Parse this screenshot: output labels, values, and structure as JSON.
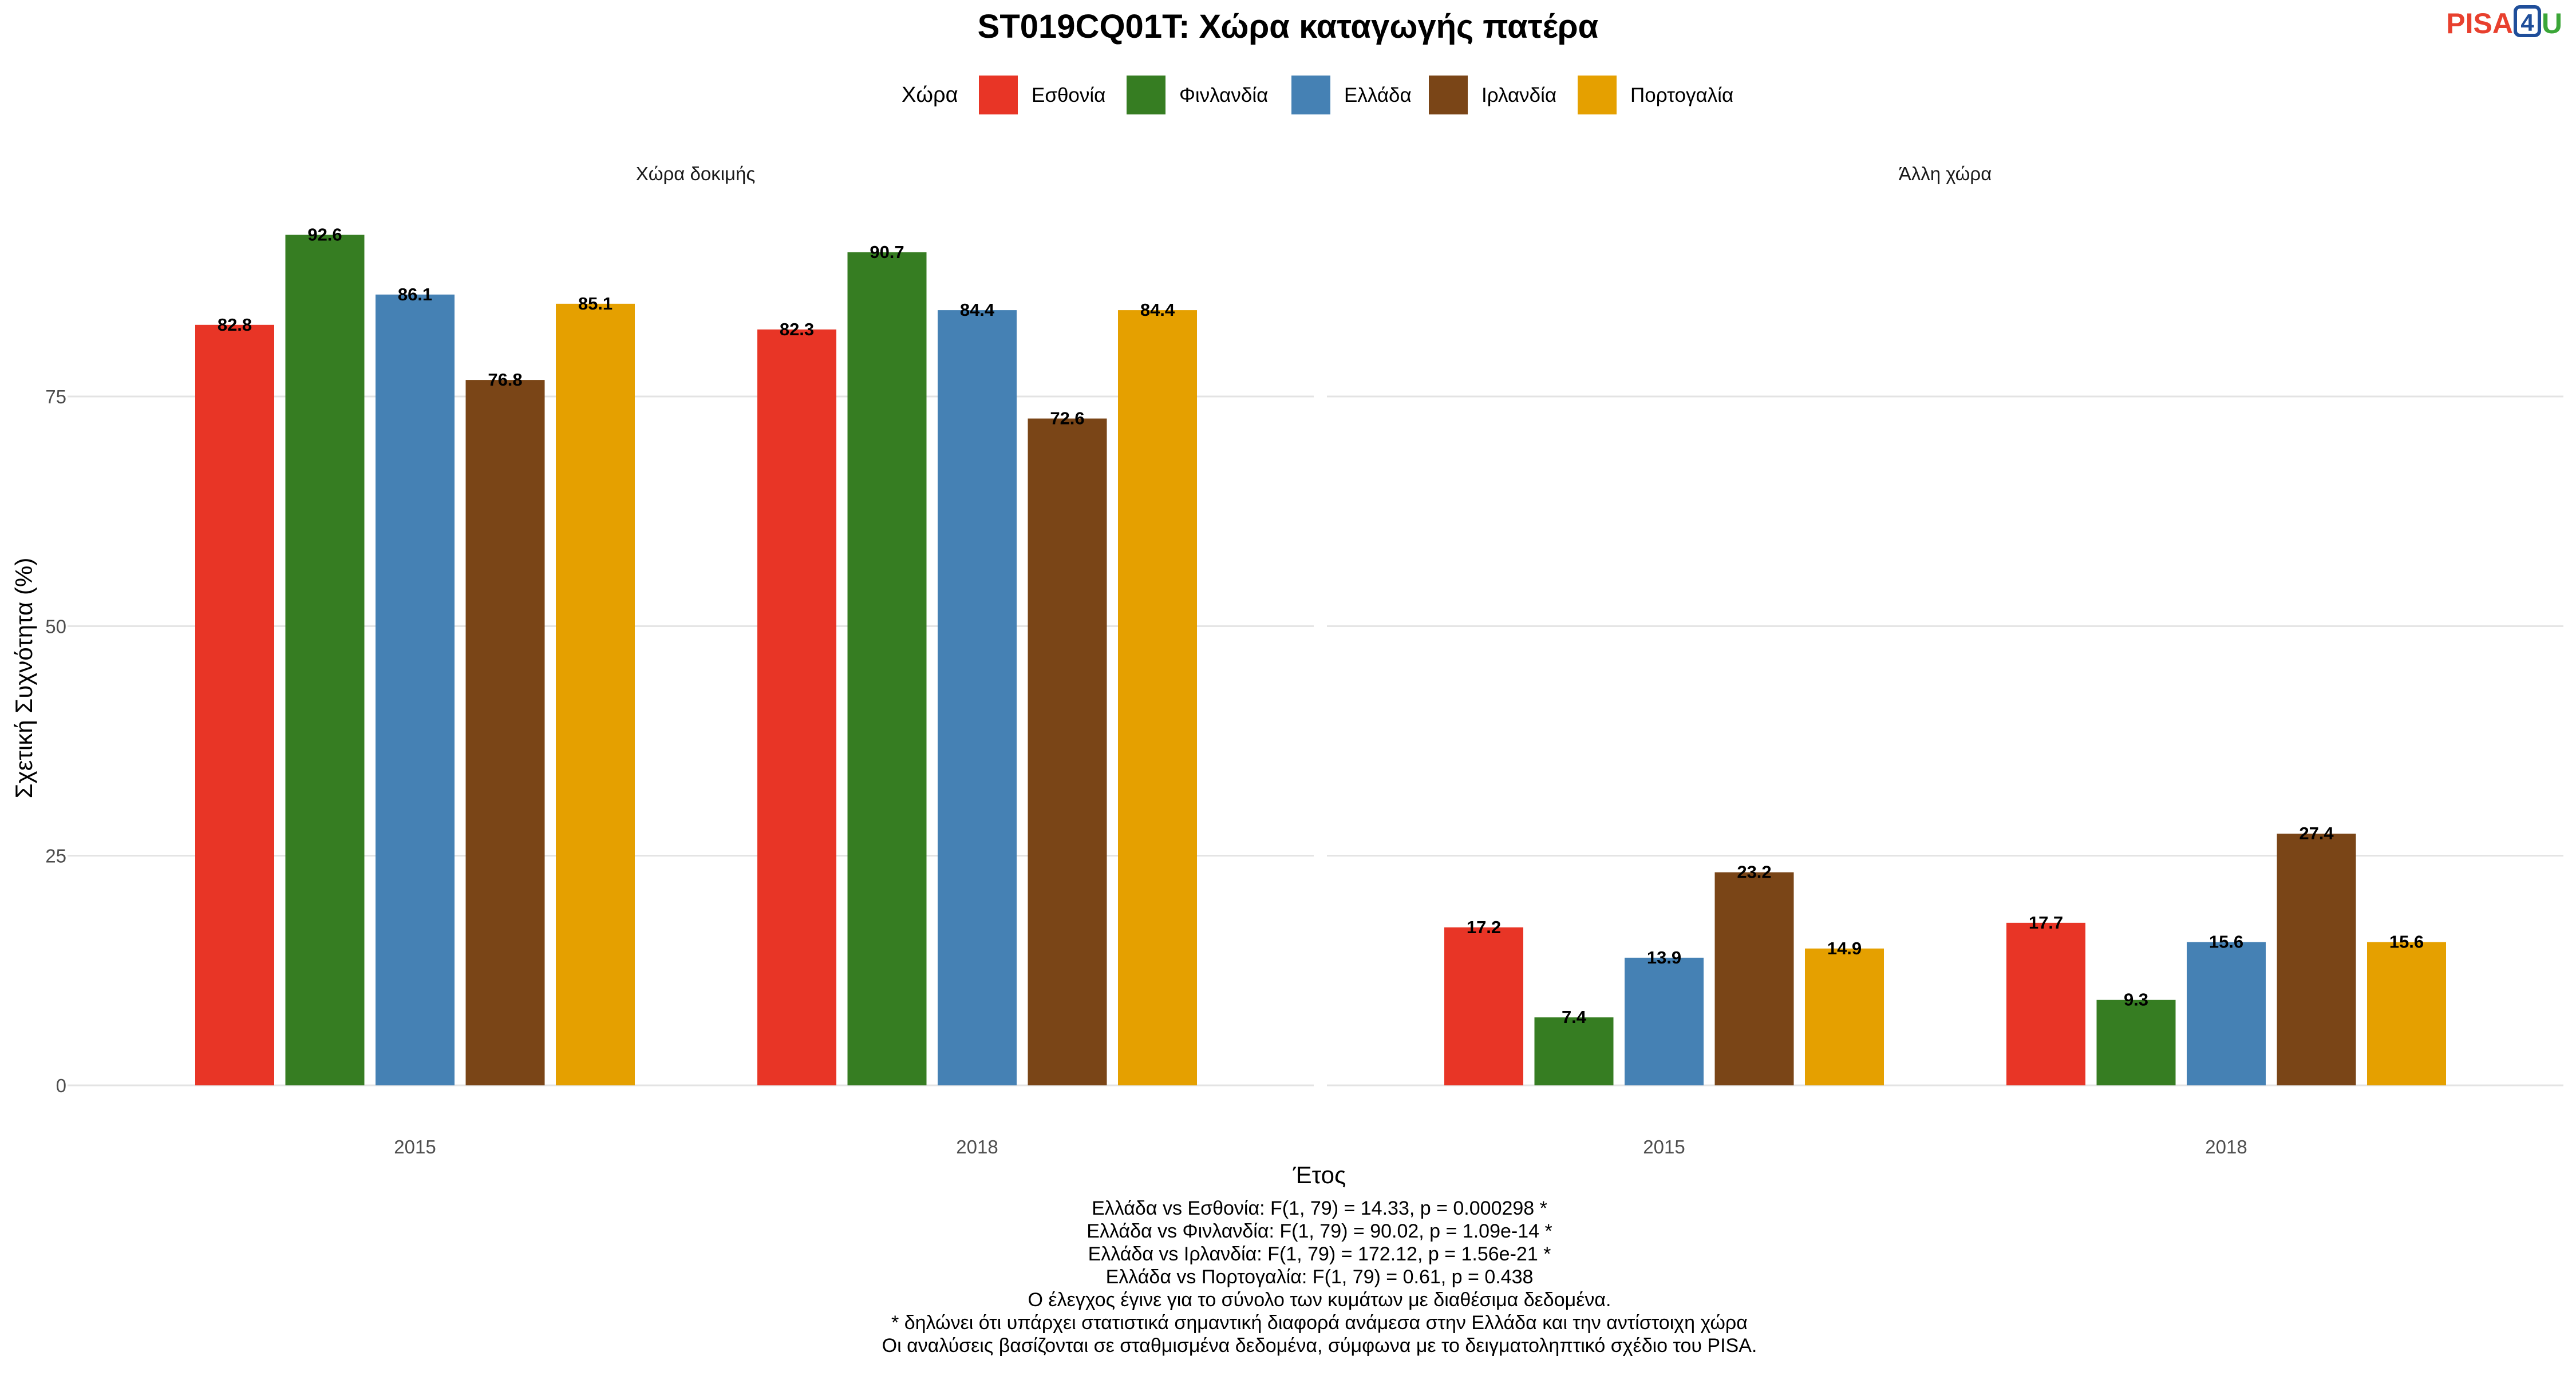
{
  "header": {
    "title": "ST019CQ01T: Χώρα καταγωγής πατέρα",
    "logo_text": {
      "pisa": "PISA",
      "four": "4",
      "u": "U"
    }
  },
  "legend": {
    "title": "Χώρα",
    "placement": "top-center"
  },
  "colors": {
    "Εσθονία": "#E83526",
    "Φινλανδία": "#367D22",
    "Ελλάδα": "#4581B4",
    "Ιρλανδία": "#7A4517",
    "Πορτογαλία": "#E5A000",
    "logo_pisa": "#E8402E",
    "logo_four": "#1F4E9A",
    "logo_u": "#3BA638"
  },
  "chart_data": {
    "type": "bar",
    "title": "ST019CQ01T: Χώρα καταγωγής πατέρα",
    "xlabel": "Έτος",
    "ylabel": "Σχετική Συχνότητα (%)",
    "ylim": [
      0,
      95
    ],
    "yticks": [
      0,
      25,
      50,
      75
    ],
    "grid": true,
    "legend_placement": "top-center",
    "categories": [
      "2015",
      "2018"
    ],
    "series_names": [
      "Εσθονία",
      "Φινλανδία",
      "Ελλάδα",
      "Ιρλανδία",
      "Πορτογαλία"
    ],
    "facets": [
      {
        "label": "Χώρα δοκιμής",
        "series": [
          {
            "name": "Εσθονία",
            "values": [
              82.8,
              82.3
            ]
          },
          {
            "name": "Φινλανδία",
            "values": [
              92.6,
              90.7
            ]
          },
          {
            "name": "Ελλάδα",
            "values": [
              86.1,
              84.4
            ]
          },
          {
            "name": "Ιρλανδία",
            "values": [
              76.8,
              72.6
            ]
          },
          {
            "name": "Πορτογαλία",
            "values": [
              85.1,
              84.4
            ]
          }
        ]
      },
      {
        "label": "Άλλη χώρα",
        "series": [
          {
            "name": "Εσθονία",
            "values": [
              17.2,
              17.7
            ]
          },
          {
            "name": "Φινλανδία",
            "values": [
              7.4,
              9.3
            ]
          },
          {
            "name": "Ελλάδα",
            "values": [
              13.9,
              15.6
            ]
          },
          {
            "name": "Ιρλανδία",
            "values": [
              23.2,
              27.4
            ]
          },
          {
            "name": "Πορτογαλία",
            "values": [
              14.9,
              15.6
            ]
          }
        ]
      }
    ]
  },
  "footnotes": [
    "Ελλάδα vs Εσθονία: F(1, 79) = 14.33, p = 0.000298 *",
    "Ελλάδα vs Φινλανδία: F(1, 79) = 90.02, p = 1.09e-14 *",
    "Ελλάδα vs Ιρλανδία: F(1, 79) = 172.12, p = 1.56e-21 *",
    "Ελλάδα vs Πορτογαλία: F(1, 79) = 0.61, p = 0.438",
    "Ο έλεγχος έγινε για το σύνολο των κυμάτων με διαθέσιμα δεδομένα.",
    "* δηλώνει ότι υπάρχει στατιστικά σημαντική διαφορά ανάμεσα στην Ελλάδα και την αντίστοιχη χώρα",
    "Οι αναλύσεις βασίζονται σε σταθμισμένα δεδομένα, σύμφωνα με το δειγματοληπτικό σχέδιο του PISA."
  ]
}
